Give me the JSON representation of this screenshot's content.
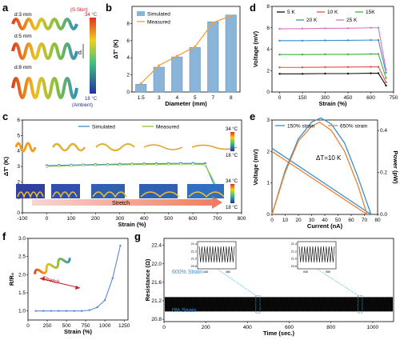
{
  "panels": {
    "a": {
      "letter": "a",
      "coil_labels": [
        "d:3 mm",
        "d:5 mm",
        "d:8 mm"
      ],
      "d_mark": "d",
      "colorbar_top": "34 °C",
      "colorbar_top_note": "(S-Skin)",
      "colorbar_bottom": "18 °C",
      "colorbar_bottom_note": "(Ambient)"
    },
    "b": {
      "letter": "b"
    },
    "c": {
      "letter": "c",
      "colorbar_top_1": "34 °C",
      "colorbar_bottom_1": "18 °C",
      "colorbar_top_2": "34 °C",
      "colorbar_bottom_2": "18 °C",
      "stretch_label": "Stretch"
    },
    "d": {
      "letter": "d"
    },
    "e": {
      "letter": "e",
      "annotation": "ΔT=10 K"
    },
    "f": {
      "letter": "f",
      "stretch_label": "Stretch"
    },
    "g": {
      "letter": "g",
      "label_600": "600% Strain",
      "label_0": "0% Strain"
    }
  },
  "chart_data": [
    {
      "id": "b",
      "type": "bar",
      "categories": [
        "1.5",
        "3",
        "4",
        "5",
        "7",
        "8"
      ],
      "series": [
        {
          "name": "Simulated",
          "values": [
            0.9,
            2.9,
            4.1,
            5.2,
            8.2,
            9.0
          ]
        },
        {
          "name": "Measured",
          "values": [
            1.0,
            3.1,
            4.2,
            5.3,
            8.1,
            8.9
          ]
        }
      ],
      "xlabel": "Diameter (mm)",
      "ylabel": "ΔT' (K)",
      "ylim": [
        0,
        10
      ],
      "yticks": [
        "0",
        "2",
        "4",
        "6",
        "8"
      ],
      "colors": {
        "bar": "#8ab4d8",
        "line": "#f0a040"
      },
      "legend": "top-left"
    },
    {
      "id": "c",
      "type": "line",
      "x": [
        0,
        50,
        100,
        150,
        200,
        250,
        300,
        350,
        400,
        450,
        500,
        550,
        600,
        650,
        700
      ],
      "series": [
        {
          "name": "Simulated",
          "values": [
            3.05,
            3.07,
            3.09,
            3.1,
            3.12,
            3.13,
            3.15,
            3.16,
            3.17,
            3.18,
            3.19,
            3.2,
            3.2,
            3.18,
            1.3
          ]
        },
        {
          "name": "Measured",
          "values": [
            3.0,
            3.02,
            3.05,
            3.07,
            3.08,
            3.1,
            3.1,
            3.12,
            3.12,
            3.13,
            3.14,
            3.15,
            3.15,
            3.1,
            1.6
          ]
        }
      ],
      "xlabel": "Strain (%)",
      "ylabel": "ΔT' (K)",
      "xlim": [
        -100,
        800
      ],
      "xticks": [
        "-100",
        "0",
        "100",
        "200",
        "300",
        "400",
        "500",
        "600",
        "700",
        "800"
      ],
      "ylim": [
        0,
        6
      ],
      "yticks": [
        "0",
        "1",
        "2",
        "3",
        "4",
        "5",
        "6"
      ],
      "colors": {
        "Simulated": "#3a8fd0",
        "Measured": "#8ac040"
      },
      "legend": "top"
    },
    {
      "id": "d",
      "type": "line",
      "x": [
        0,
        150,
        300,
        450,
        600,
        650,
        700
      ],
      "series": [
        {
          "name": "5 K",
          "values": [
            1.7,
            1.7,
            1.72,
            1.72,
            1.75,
            1.75,
            0.6
          ]
        },
        {
          "name": "10 K",
          "values": [
            2.3,
            2.3,
            2.32,
            2.33,
            2.35,
            2.35,
            0.9
          ]
        },
        {
          "name": "15K",
          "values": [
            3.5,
            3.5,
            3.52,
            3.52,
            3.55,
            3.55,
            1.3
          ]
        },
        {
          "name": "20 K",
          "values": [
            4.8,
            4.8,
            4.82,
            4.83,
            4.85,
            4.85,
            1.8
          ]
        },
        {
          "name": "25 K",
          "values": [
            5.9,
            5.92,
            5.95,
            5.96,
            6.0,
            6.0,
            2.1
          ]
        }
      ],
      "xlabel": "Strain (%)",
      "ylabel": "Voltage (mV)",
      "xlim": [
        -50,
        750
      ],
      "xticks": [
        "0",
        "150",
        "300",
        "450",
        "600",
        "750"
      ],
      "ylim": [
        0,
        8
      ],
      "yticks": [
        "0",
        "2",
        "4",
        "6",
        "8"
      ],
      "colors": {
        "5 K": "#111111",
        "10 K": "#e05050",
        "15K": "#40b040",
        "20 K": "#3a8fd0",
        "25 K": "#e070c0"
      },
      "legend": "top"
    },
    {
      "id": "e",
      "type": "line",
      "voltage": [
        {
          "name": "150% strain",
          "x": [
            0,
            75
          ],
          "y": [
            2.1,
            0
          ]
        },
        {
          "name": "650% strain",
          "x": [
            0,
            72
          ],
          "y": [
            2.0,
            0
          ]
        }
      ],
      "power": [
        {
          "name": "150% strain",
          "x": [
            0,
            10,
            20,
            30,
            37,
            45,
            55,
            65,
            75
          ],
          "y": [
            0,
            0.21,
            0.36,
            0.44,
            0.46,
            0.43,
            0.34,
            0.18,
            0
          ]
        },
        {
          "name": "650% strain",
          "x": [
            0,
            10,
            20,
            30,
            36,
            45,
            55,
            65,
            72
          ],
          "y": [
            0,
            0.2,
            0.35,
            0.42,
            0.44,
            0.4,
            0.3,
            0.14,
            0
          ]
        }
      ],
      "xlabel": "Current (nA)",
      "ylabel": "Voltage (mV)",
      "y2label": "Power (pW)",
      "xlim": [
        0,
        80
      ],
      "xticks": [
        "0",
        "10",
        "20",
        "30",
        "40",
        "50",
        "60",
        "70",
        "80"
      ],
      "ylim": [
        0,
        3
      ],
      "yticks": [
        "0",
        "1",
        "2",
        "3"
      ],
      "y2lim": [
        0,
        0.45
      ],
      "y2ticks": [
        "0.0",
        "0.2",
        "0.4"
      ],
      "colors": {
        "150% strain": "#3a8fd0",
        "650% strain": "#f08030"
      },
      "legend": "top"
    },
    {
      "id": "f",
      "type": "line",
      "x": [
        100,
        200,
        300,
        400,
        500,
        600,
        700,
        800,
        900,
        1000,
        1100,
        1200
      ],
      "series": [
        {
          "name": "R/R0",
          "values": [
            1.0,
            1.0,
            1.0,
            1.0,
            1.0,
            1.0,
            1.0,
            1.02,
            1.1,
            1.3,
            1.9,
            2.8
          ]
        }
      ],
      "xlabel": "Strain (%)",
      "ylabel": "R/R₀",
      "xlim": [
        0,
        1300
      ],
      "xticks": [
        "0",
        "250",
        "500",
        "750",
        "1000",
        "1250"
      ],
      "ylim": [
        0.75,
        3.0
      ],
      "yticks": [
        "1.0",
        "1.5",
        "2.0",
        "2.5",
        "3.0"
      ],
      "colors": {
        "line": "#5a8ad0"
      }
    },
    {
      "id": "g",
      "type": "line",
      "xlabel": "Time (sec.)",
      "ylabel": "Resistance (Ω)",
      "xlim": [
        0,
        1100
      ],
      "xticks": [
        "0",
        "200",
        "400",
        "600",
        "800",
        "1000"
      ],
      "ylim": [
        20.75,
        22.55
      ],
      "yticks": [
        "20.8",
        "21.2",
        "21.6",
        "22.0",
        "22.4"
      ],
      "band": {
        "low": 20.97,
        "high": 21.28
      },
      "insets": [
        {
          "x_from": 440,
          "x_to": 460,
          "xticks": [
            "440",
            "460"
          ],
          "yticks": [
            "20.8",
            "21.0",
            "21.2",
            "21.4"
          ]
        },
        {
          "x_from": 930,
          "x_to": 950,
          "xticks": [
            "930",
            "950"
          ],
          "yticks": [
            "20.8",
            "21.0",
            "21.2",
            "21.4"
          ]
        }
      ],
      "colors": {
        "trace": "#000000"
      }
    }
  ]
}
